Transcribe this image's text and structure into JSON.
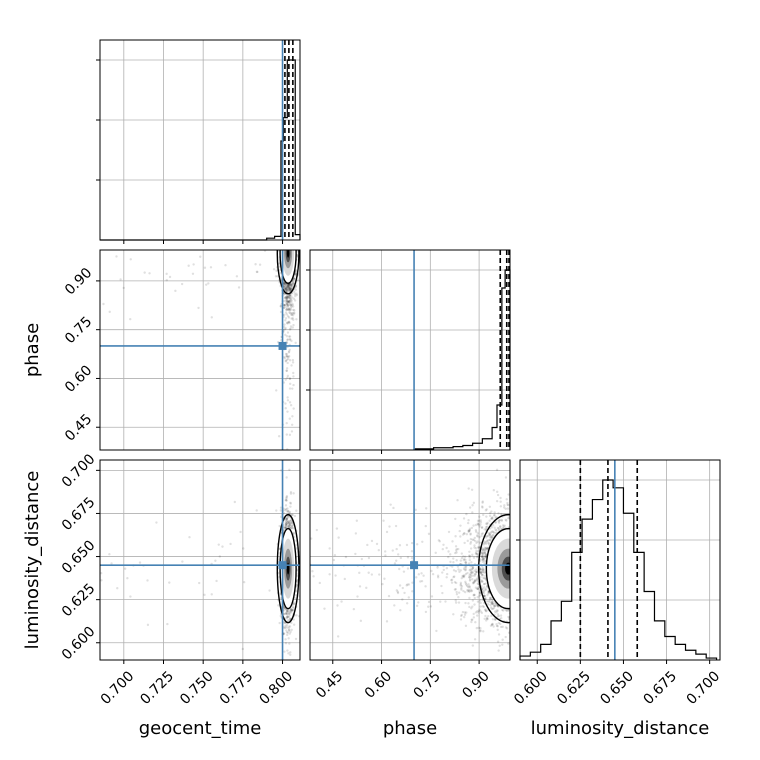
{
  "chart_data": {
    "type": "corner",
    "title": "",
    "parameters": [
      "geocent_time",
      "phase",
      "luminosity_distance"
    ],
    "axis_labels": {
      "x": [
        "geocent_time",
        "phase",
        "luminosity_distance"
      ],
      "y": [
        "",
        "phase",
        "luminosity_distance"
      ]
    },
    "truths": {
      "geocent_time": 0.8,
      "phase": 0.7,
      "luminosity_distance": 0.645
    },
    "ranges": {
      "geocent_time": [
        0.685,
        0.811
      ],
      "phase": [
        0.38,
        0.995
      ],
      "luminosity_distance": [
        0.59,
        0.706
      ]
    },
    "ticks": {
      "geocent_time": [
        "0.700",
        "0.725",
        "0.750",
        "0.775",
        "0.800"
      ],
      "phase": [
        "0.45",
        "0.60",
        "0.75",
        "0.90"
      ],
      "luminosity_distance_x": [
        "0.600",
        "0.625",
        "0.650",
        "0.675",
        "0.700"
      ],
      "luminosity_distance_y": [
        "0.600",
        "0.625",
        "0.650",
        "0.675",
        "0.700"
      ]
    },
    "quantiles": {
      "geocent_time": [
        0.8015,
        0.804,
        0.8065
      ],
      "phase": [
        0.965,
        0.985,
        0.993
      ],
      "luminosity_distance": [
        0.625,
        0.641,
        0.658
      ]
    },
    "marginals": {
      "geocent_time": {
        "edges": [
          0.685,
          0.79,
          0.795,
          0.799,
          0.8005,
          0.803,
          0.808,
          0.811
        ],
        "counts": [
          0,
          0.01,
          0.02,
          0.55,
          0.68,
          1.0,
          0.03
        ]
      },
      "phase": {
        "edges": [
          0.7,
          0.73,
          0.76,
          0.79,
          0.82,
          0.85,
          0.88,
          0.91,
          0.94,
          0.955,
          0.97,
          0.98,
          0.995
        ],
        "counts": [
          0.005,
          0.005,
          0.01,
          0.01,
          0.015,
          0.02,
          0.03,
          0.05,
          0.1,
          0.2,
          0.72,
          0.8
        ]
      },
      "luminosity_distance": {
        "edges": [
          0.59,
          0.596,
          0.602,
          0.608,
          0.614,
          0.62,
          0.626,
          0.632,
          0.638,
          0.644,
          0.65,
          0.656,
          0.662,
          0.668,
          0.674,
          0.68,
          0.686,
          0.692,
          0.698,
          0.704
        ],
        "counts": [
          0.02,
          0.04,
          0.08,
          0.2,
          0.3,
          0.55,
          0.72,
          0.82,
          0.92,
          0.88,
          0.75,
          0.55,
          0.35,
          0.2,
          0.12,
          0.08,
          0.05,
          0.03,
          0.01
        ]
      }
    },
    "truth_color": "#4682b4",
    "grid": true
  }
}
